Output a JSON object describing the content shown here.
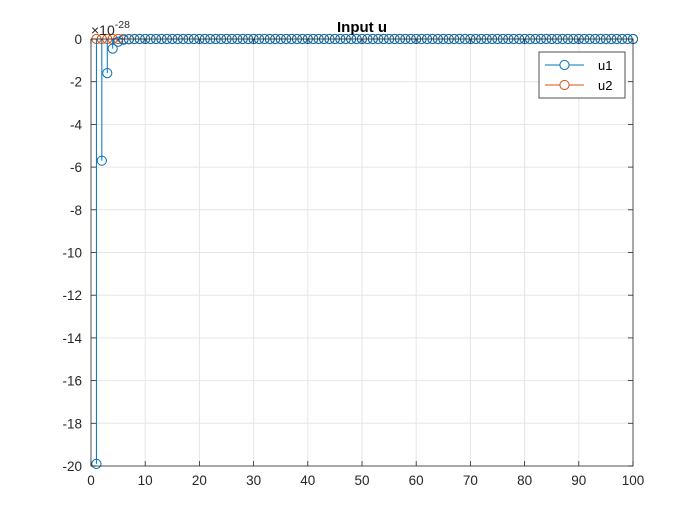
{
  "chart_data": {
    "type": "stem",
    "title": "Input u",
    "xlabel": "",
    "ylabel": "",
    "exponent_multiplier": "×10",
    "exponent_power": "-28",
    "xlim": [
      0,
      100
    ],
    "ylim": [
      -20,
      0
    ],
    "x_ticks": [
      "0",
      "10",
      "20",
      "30",
      "40",
      "50",
      "60",
      "70",
      "80",
      "90",
      "100"
    ],
    "y_ticks": [
      "0",
      "-2",
      "-4",
      "-6",
      "-8",
      "-10",
      "-12",
      "-14",
      "-16",
      "-18",
      "-20"
    ],
    "grid": true,
    "legend_position": "top-right",
    "x": [
      1,
      2,
      3,
      4,
      5,
      6,
      7,
      8,
      9,
      10,
      11,
      12,
      13,
      14,
      15,
      16,
      17,
      18,
      19,
      20,
      21,
      22,
      23,
      24,
      25,
      26,
      27,
      28,
      29,
      30,
      31,
      32,
      33,
      34,
      35,
      36,
      37,
      38,
      39,
      40,
      41,
      42,
      43,
      44,
      45,
      46,
      47,
      48,
      49,
      50,
      51,
      52,
      53,
      54,
      55,
      56,
      57,
      58,
      59,
      60,
      61,
      62,
      63,
      64,
      65,
      66,
      67,
      68,
      69,
      70,
      71,
      72,
      73,
      74,
      75,
      76,
      77,
      78,
      79,
      80,
      81,
      82,
      83,
      84,
      85,
      86,
      87,
      88,
      89,
      90,
      91,
      92,
      93,
      94,
      95,
      96,
      97,
      98,
      99,
      100
    ],
    "series": [
      {
        "name": "u1",
        "color": "#0072BD",
        "values": [
          -19.9,
          -5.7,
          -1.6,
          -0.45,
          -0.13,
          -0.035,
          -0.01,
          -0.003,
          -0.001,
          0,
          0,
          0,
          0,
          0,
          0,
          0,
          0,
          0,
          0,
          0,
          0,
          0,
          0,
          0,
          0,
          0,
          0,
          0,
          0,
          0,
          0,
          0,
          0,
          0,
          0,
          0,
          0,
          0,
          0,
          0,
          0,
          0,
          0,
          0,
          0,
          0,
          0,
          0,
          0,
          0,
          0,
          0,
          0,
          0,
          0,
          0,
          0,
          0,
          0,
          0,
          0,
          0,
          0,
          0,
          0,
          0,
          0,
          0,
          0,
          0,
          0,
          0,
          0,
          0,
          0,
          0,
          0,
          0,
          0,
          0,
          0,
          0,
          0,
          0,
          0,
          0,
          0,
          0,
          0,
          0,
          0,
          0,
          0,
          0,
          0,
          0,
          0,
          0,
          0,
          0
        ]
      },
      {
        "name": "u2",
        "color": "#D95319",
        "values": [
          0,
          0,
          0,
          0,
          0,
          0,
          0,
          0,
          0,
          0,
          0,
          0,
          0,
          0,
          0,
          0,
          0,
          0,
          0,
          0,
          0,
          0,
          0,
          0,
          0,
          0,
          0,
          0,
          0,
          0,
          0,
          0,
          0,
          0,
          0,
          0,
          0,
          0,
          0,
          0,
          0,
          0,
          0,
          0,
          0,
          0,
          0,
          0,
          0,
          0,
          0,
          0,
          0,
          0,
          0,
          0,
          0,
          0,
          0,
          0,
          0,
          0,
          0,
          0,
          0,
          0,
          0,
          0,
          0,
          0,
          0,
          0,
          0,
          0,
          0,
          0,
          0,
          0,
          0,
          0,
          0,
          0,
          0,
          0,
          0,
          0,
          0,
          0,
          0,
          0,
          0,
          0,
          0,
          0,
          0,
          0,
          0,
          0,
          0,
          0
        ]
      }
    ]
  }
}
